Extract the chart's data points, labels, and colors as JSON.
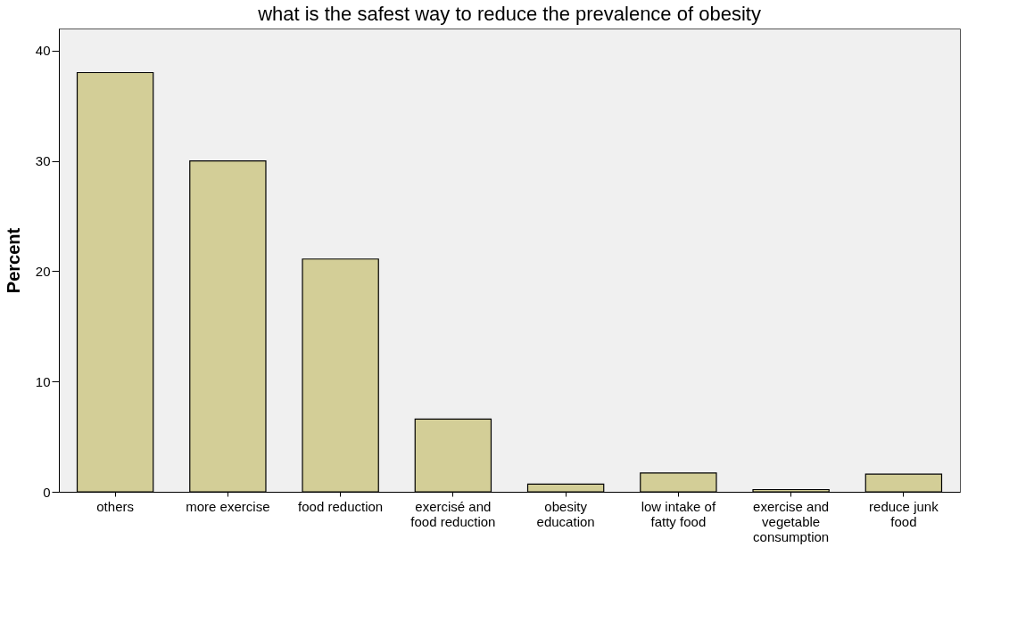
{
  "chart_data": {
    "type": "bar",
    "title": "what is the safest way to reduce the prevalence of obesity",
    "ylabel": "Percent",
    "categories": [
      "others",
      "more exercise",
      "food reduction",
      "exercisé and food reduction",
      "obesity education",
      "low intake of fatty food",
      "exercise and vegetable consumption",
      "reduce junk food"
    ],
    "values": [
      38.0,
      30.0,
      21.1,
      6.6,
      0.7,
      1.7,
      0.2,
      1.6
    ],
    "color": "#d3ce97",
    "ylim": [
      0,
      42
    ],
    "yticks": [
      0,
      10,
      20,
      30,
      40
    ],
    "grid": false
  }
}
